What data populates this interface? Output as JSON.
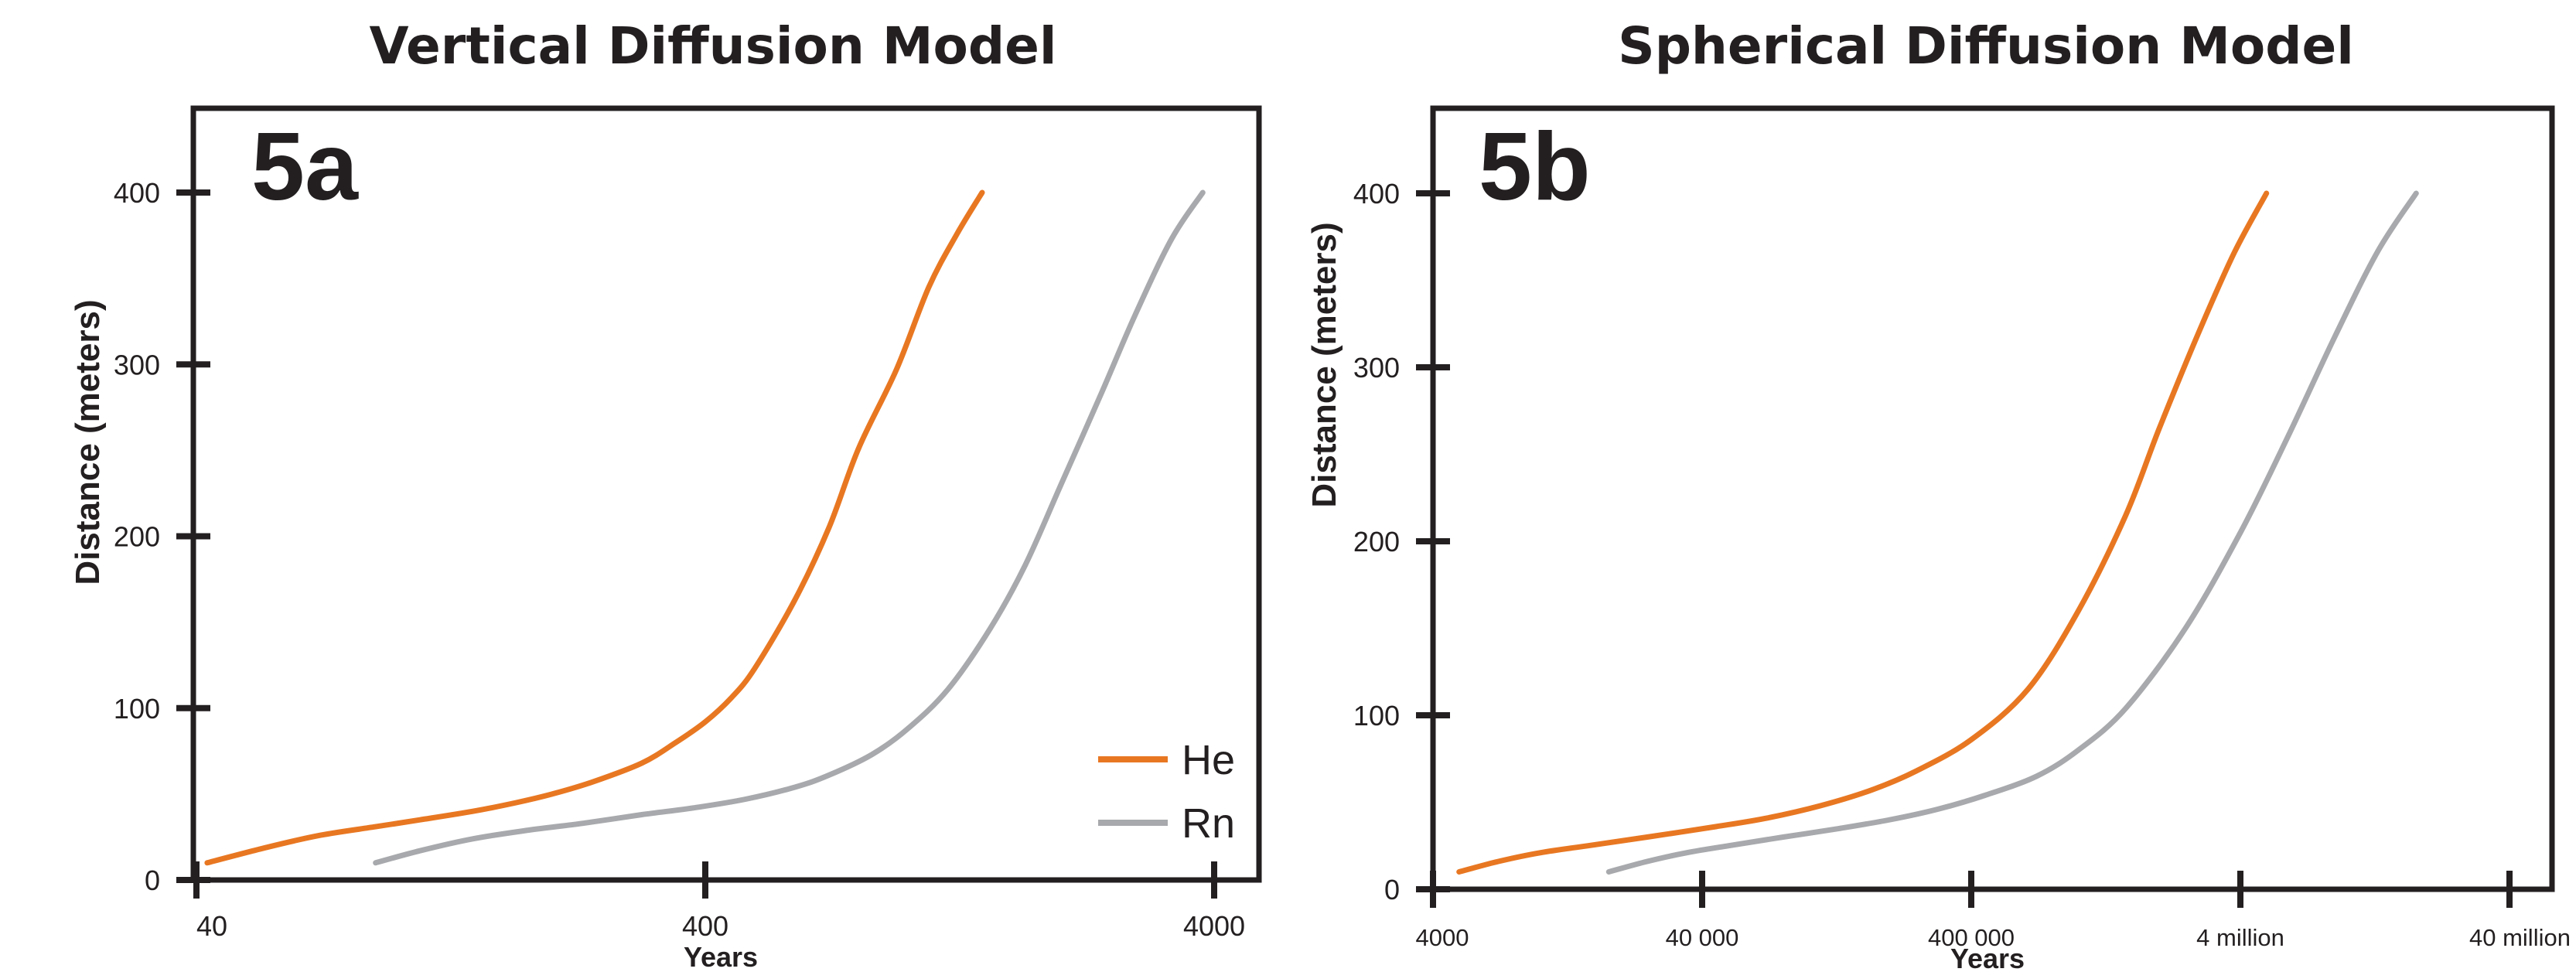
{
  "chart_data": [
    {
      "type": "line",
      "panel": "5a",
      "title": "Vertical Diffusion Model",
      "xlabel": "Years",
      "ylabel": "Distance (meters)",
      "xscale": "log",
      "xlim": [
        40,
        4000
      ],
      "ylim": [
        0,
        450
      ],
      "xticks": [
        40,
        400,
        4000
      ],
      "xtick_labels": [
        "40",
        "400",
        "4000"
      ],
      "yticks": [
        0,
        100,
        200,
        300,
        400
      ],
      "ytick_labels": [
        "0",
        "100",
        "200",
        "300",
        "400"
      ],
      "legend": "bottom-right",
      "series": [
        {
          "name": "He",
          "color": "#e87722",
          "x": [
            42,
            55,
            70,
            90,
            110,
            140,
            170,
            200,
            240,
            300,
            350,
            400,
            450,
            500,
            600,
            700,
            800,
            950,
            1100,
            1250,
            1400
          ],
          "y": [
            10,
            19,
            26,
            31,
            35,
            40,
            45,
            50,
            57,
            68,
            80,
            92,
            106,
            123,
            163,
            205,
            251,
            297,
            345,
            376,
            400
          ]
        },
        {
          "name": "Rn",
          "color": "#a7a9ac",
          "x": [
            90,
            110,
            140,
            180,
            230,
            300,
            380,
            480,
            600,
            700,
            850,
            1000,
            1200,
            1450,
            1700,
            2000,
            2400,
            2800,
            3300,
            3800
          ],
          "y": [
            10,
            17,
            24,
            29,
            33,
            38,
            42,
            47,
            54,
            61,
            73,
            88,
            111,
            146,
            183,
            230,
            283,
            329,
            373,
            400
          ]
        }
      ]
    },
    {
      "type": "line",
      "panel": "5b",
      "title": "Spherical Diffusion Model",
      "xlabel": "Years",
      "ylabel": "Distance (meters)",
      "xscale": "log",
      "xlim": [
        4000,
        40000000
      ],
      "ylim": [
        0,
        450
      ],
      "xticks": [
        4000,
        40000,
        400000,
        4000000,
        40000000
      ],
      "xtick_labels": [
        "4000",
        "40 000",
        "400 000",
        "4 million",
        "40 million"
      ],
      "yticks": [
        0,
        100,
        200,
        300,
        400
      ],
      "ytick_labels": [
        "0",
        "100",
        "200",
        "300",
        "400"
      ],
      "series": [
        {
          "name": "He",
          "color": "#e87722",
          "x": [
            5000,
            7000,
            10000,
            15000,
            25000,
            45000,
            70000,
            110000,
            170000,
            250000,
            400000,
            650000,
            1000000,
            1500000,
            2000000,
            2800000,
            3800000,
            5000000
          ],
          "y": [
            10,
            16,
            21,
            25,
            30,
            36,
            41,
            48,
            57,
            68,
            86,
            115,
            160,
            215,
            265,
            320,
            366,
            400
          ]
        },
        {
          "name": "Rn",
          "color": "#a7a9ac",
          "x": [
            18000,
            25000,
            35000,
            50000,
            80000,
            130000,
            200000,
            300000,
            450000,
            700000,
            1000000,
            1500000,
            2500000,
            4000000,
            6000000,
            9000000,
            13000000,
            18000000
          ],
          "y": [
            10,
            16,
            21,
            25,
            30,
            35,
            40,
            46,
            54,
            65,
            80,
            104,
            150,
            205,
            260,
            318,
            367,
            400
          ]
        }
      ]
    }
  ]
}
